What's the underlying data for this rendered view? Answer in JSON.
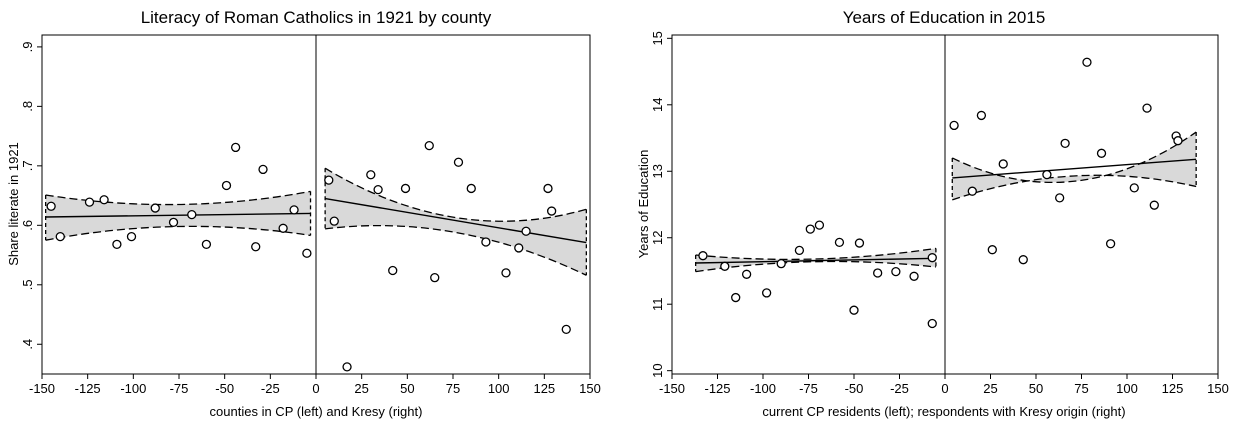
{
  "chart_data": [
    {
      "type": "scatter",
      "title": "Literacy of Roman Catholics in 1921 by county",
      "xlabel": "counties in CP (left) and Kresy (right)",
      "ylabel": "Share literate in 1921",
      "xlim": [
        -150,
        150
      ],
      "ylim": [
        0.35,
        0.92
      ],
      "xticks": [
        -150,
        -125,
        -100,
        -75,
        -50,
        -25,
        0,
        25,
        50,
        75,
        100,
        125,
        150
      ],
      "xtick_labels": [
        "-150",
        "-125",
        "-100",
        "-75",
        "-50",
        "-25",
        "0",
        "25",
        "50",
        "75",
        "100",
        "125",
        "150"
      ],
      "yticks": [
        0.4,
        0.5,
        0.6,
        0.7,
        0.8,
        0.9
      ],
      "ytick_labels": [
        ".4",
        ".5",
        ".6",
        ".7",
        ".8",
        ".9"
      ],
      "cutoff": 0,
      "grid": false,
      "points": [
        {
          "x": -145,
          "y": 0.632
        },
        {
          "x": -140,
          "y": 0.581
        },
        {
          "x": -124,
          "y": 0.639
        },
        {
          "x": -116,
          "y": 0.643
        },
        {
          "x": -109,
          "y": 0.568
        },
        {
          "x": -101,
          "y": 0.581
        },
        {
          "x": -88,
          "y": 0.629
        },
        {
          "x": -78,
          "y": 0.605
        },
        {
          "x": -68,
          "y": 0.618
        },
        {
          "x": -60,
          "y": 0.568
        },
        {
          "x": -49,
          "y": 0.667
        },
        {
          "x": -44,
          "y": 0.731
        },
        {
          "x": -33,
          "y": 0.564
        },
        {
          "x": -29,
          "y": 0.694
        },
        {
          "x": -18,
          "y": 0.595
        },
        {
          "x": -12,
          "y": 0.626
        },
        {
          "x": -5,
          "y": 0.553
        },
        {
          "x": 7,
          "y": 0.676
        },
        {
          "x": 10,
          "y": 0.607
        },
        {
          "x": 17,
          "y": 0.362
        },
        {
          "x": 30,
          "y": 0.685
        },
        {
          "x": 34,
          "y": 0.66
        },
        {
          "x": 42,
          "y": 0.524
        },
        {
          "x": 49,
          "y": 0.662
        },
        {
          "x": 62,
          "y": 0.734
        },
        {
          "x": 65,
          "y": 0.512
        },
        {
          "x": 78,
          "y": 0.706
        },
        {
          "x": 85,
          "y": 0.662
        },
        {
          "x": 93,
          "y": 0.572
        },
        {
          "x": 104,
          "y": 0.52
        },
        {
          "x": 111,
          "y": 0.562
        },
        {
          "x": 115,
          "y": 0.59
        },
        {
          "x": 127,
          "y": 0.662
        },
        {
          "x": 129,
          "y": 0.624
        },
        {
          "x": 137,
          "y": 0.425
        }
      ],
      "fits": [
        {
          "x": [
            -148,
            -3
          ],
          "y": [
            0.614,
            0.62
          ],
          "ci_lower": [
            0.575,
            0.583
          ],
          "ci_upper": [
            0.651,
            0.657
          ],
          "ci_mid": [
            0.635,
            0.598
          ]
        },
        {
          "x": [
            5,
            148
          ],
          "y": [
            0.645,
            0.571
          ],
          "ci_lower": [
            0.594,
            0.516
          ],
          "ci_upper": [
            0.696,
            0.627
          ],
          "ci_mid": [
            0.613,
            0.588
          ]
        }
      ]
    },
    {
      "type": "scatter",
      "title": "Years of Education in 2015",
      "xlabel": "current CP residents (left); respondents with Kresy origin (right)",
      "ylabel": "Years of Education",
      "xlim": [
        -150,
        150
      ],
      "ylim": [
        9.95,
        15.05
      ],
      "xticks": [
        -150,
        -125,
        -100,
        -75,
        -50,
        -25,
        0,
        25,
        50,
        75,
        100,
        125,
        150
      ],
      "xtick_labels": [
        "-150",
        "-125",
        "-100",
        "-75",
        "-50",
        "-25",
        "0",
        "25",
        "50",
        "75",
        "100",
        "125",
        "150"
      ],
      "yticks": [
        10,
        11,
        12,
        13,
        14,
        15
      ],
      "ytick_labels": [
        "10",
        "11",
        "12",
        "13",
        "14",
        "15"
      ],
      "cutoff": 0,
      "grid": false,
      "points": [
        {
          "x": -133,
          "y": 11.73
        },
        {
          "x": -121,
          "y": 11.57
        },
        {
          "x": -115,
          "y": 11.1
        },
        {
          "x": -109,
          "y": 11.45
        },
        {
          "x": -98,
          "y": 11.17
        },
        {
          "x": -90,
          "y": 11.61
        },
        {
          "x": -80,
          "y": 11.81
        },
        {
          "x": -74,
          "y": 12.13
        },
        {
          "x": -69,
          "y": 12.19
        },
        {
          "x": -58,
          "y": 11.93
        },
        {
          "x": -50,
          "y": 10.91
        },
        {
          "x": -47,
          "y": 11.92
        },
        {
          "x": -37,
          "y": 11.47
        },
        {
          "x": -27,
          "y": 11.49
        },
        {
          "x": -17,
          "y": 11.42
        },
        {
          "x": -7,
          "y": 11.7
        },
        {
          "x": -7,
          "y": 10.71
        },
        {
          "x": 5,
          "y": 13.69
        },
        {
          "x": 15,
          "y": 12.7
        },
        {
          "x": 20,
          "y": 13.84
        },
        {
          "x": 26,
          "y": 11.82
        },
        {
          "x": 32,
          "y": 13.11
        },
        {
          "x": 43,
          "y": 11.67
        },
        {
          "x": 56,
          "y": 12.95
        },
        {
          "x": 63,
          "y": 12.6
        },
        {
          "x": 66,
          "y": 13.42
        },
        {
          "x": 78,
          "y": 14.64
        },
        {
          "x": 86,
          "y": 13.27
        },
        {
          "x": 91,
          "y": 11.91
        },
        {
          "x": 104,
          "y": 12.75
        },
        {
          "x": 111,
          "y": 13.95
        },
        {
          "x": 115,
          "y": 12.49
        },
        {
          "x": 127,
          "y": 13.53
        },
        {
          "x": 128,
          "y": 13.46
        }
      ],
      "fits": [
        {
          "x": [
            -137,
            -5
          ],
          "y": [
            11.62,
            11.69
          ],
          "ci_lower": [
            11.49,
            11.56
          ],
          "ci_upper": [
            11.74,
            11.84
          ],
          "ci_mid": [
            11.68,
            11.64
          ]
        },
        {
          "x": [
            4,
            138
          ],
          "y": [
            12.9,
            13.18
          ],
          "ci_lower": [
            12.57,
            12.77
          ],
          "ci_upper": [
            13.2,
            13.59
          ],
          "ci_mid": [
            12.85,
            12.93
          ]
        }
      ]
    }
  ]
}
